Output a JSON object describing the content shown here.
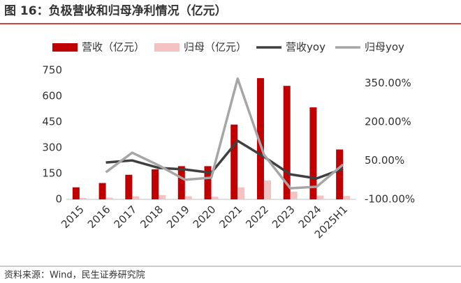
{
  "chart_data": {
    "type": "bar-line",
    "title": "图 16：负极营收和归母净利情况（亿元）",
    "source": "资料来源：Wind，民生证券研究院",
    "categories": [
      "2015",
      "2016",
      "2017",
      "2018",
      "2019",
      "2020",
      "2021",
      "2022",
      "2023",
      "2024",
      "2025H1"
    ],
    "series": [
      {
        "name": "营收（亿元）",
        "kind": "bar",
        "color": "#c00000",
        "values": [
          70,
          95,
          143,
          175,
          193,
          193,
          435,
          705,
          660,
          535,
          290
        ]
      },
      {
        "name": "归母（亿元）",
        "kind": "bar",
        "color": "#f4c2c2",
        "values": [
          8,
          10,
          18,
          25,
          18,
          15,
          70,
          110,
          45,
          22,
          20
        ]
      },
      {
        "name": "营收yoy",
        "kind": "line",
        "axis": "y2",
        "color": "#404040",
        "values": [
          null,
          43,
          51,
          22,
          16,
          3,
          127,
          65,
          -3,
          -19,
          19
        ]
      },
      {
        "name": "归母yoy",
        "kind": "line",
        "axis": "y2",
        "color": "#a6a6a6",
        "values": [
          null,
          5,
          81,
          32,
          -24,
          -16,
          368,
          73,
          -57,
          -51,
          35
        ]
      }
    ],
    "ylim": [
      0,
      750
    ],
    "yticks": [
      0,
      150,
      300,
      450,
      600,
      750
    ],
    "y2lim": [
      -100,
      400
    ],
    "y2ticks": [
      {
        "value": -100,
        "label": "-100.00%"
      },
      {
        "value": 50,
        "label": "50.00%"
      },
      {
        "value": 200,
        "label": "200.00%"
      },
      {
        "value": 350,
        "label": "350.00%"
      }
    ]
  }
}
